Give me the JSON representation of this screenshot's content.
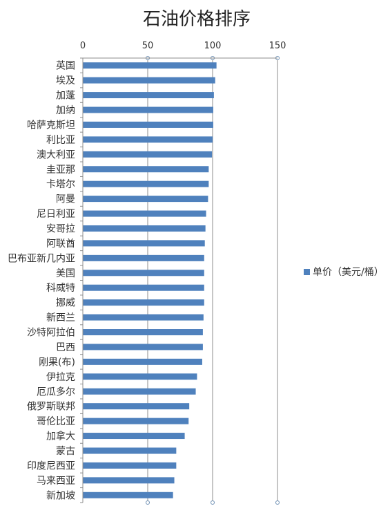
{
  "chart_data": {
    "type": "bar",
    "orientation": "horizontal",
    "title": "石油价格排序",
    "xlabel": "",
    "ylabel": "",
    "xlim": [
      0,
      150
    ],
    "xticks": [
      0,
      50,
      100,
      150
    ],
    "grid": true,
    "legend_position": "right",
    "bar_color": "#4F81BD",
    "categories": [
      "英国",
      "埃及",
      "加蓬",
      "加纳",
      "哈萨克斯坦",
      "利比亚",
      "澳大利亚",
      "圭亚那",
      "卡塔尔",
      "阿曼",
      "尼日利亚",
      "安哥拉",
      "阿联酋",
      "巴布亚新几内亚",
      "美国",
      "科威特",
      "挪威",
      "新西兰",
      "沙特阿拉伯",
      "巴西",
      "刚果(布)",
      "伊拉克",
      "厄瓜多尔",
      "俄罗斯联邦",
      "哥伦比亚",
      "加拿大",
      "蒙古",
      "印度尼西亚",
      "马来西亚",
      "新加坡"
    ],
    "series": [
      {
        "name": "单价（美元/桶）",
        "values": [
          103,
          102,
          101,
          100.5,
          100.5,
          100,
          99.5,
          97,
          97,
          96.5,
          95,
          94.5,
          94,
          93.5,
          93.5,
          93.5,
          93.5,
          93,
          92.5,
          92.5,
          92,
          88,
          87,
          82,
          81.5,
          78.5,
          72,
          72,
          70.5,
          69.5
        ]
      }
    ]
  }
}
